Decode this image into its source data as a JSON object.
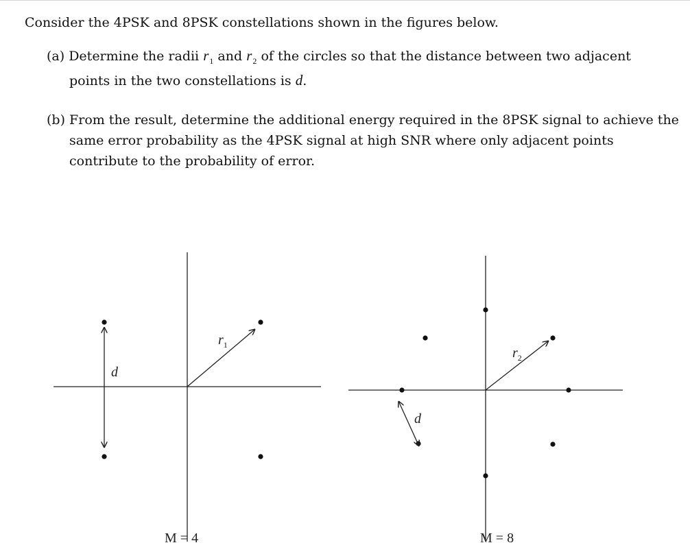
{
  "problem": {
    "intro": "Consider the 4PSK and 8PSK constellations shown in the figures below.",
    "part_a": {
      "label": "(a)",
      "text1": "Determine the radii",
      "r_sym": "r",
      "r1_sub": "1",
      "and": "and",
      "r2_sub": "2",
      "text2": "of the circles so that the distance between two adjacent",
      "text3": "points in the two constellations is",
      "d_sym": "d",
      "period": "."
    },
    "part_b": {
      "label": "(b)",
      "line1": "From the result, determine the additional energy required in the 8PSK signal to achieve the",
      "line2": "same error probability as the 4PSK signal at high SNR where only adjacent points",
      "line3": "contribute to the probability of error."
    }
  },
  "figure_4psk": {
    "radius_label": "r",
    "radius_sub": "1",
    "distance_label": "d",
    "caption": "M = 4"
  },
  "figure_8psk": {
    "radius_label": "r",
    "radius_sub": "2",
    "distance_label": "d",
    "caption": "M = 8"
  }
}
